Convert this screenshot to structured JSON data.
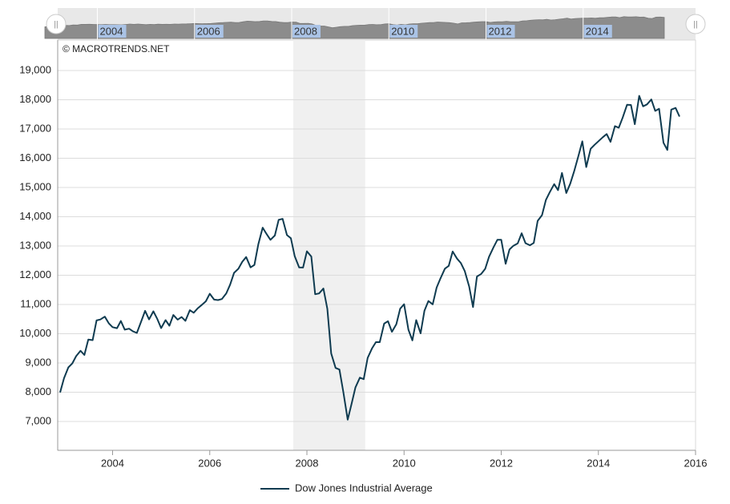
{
  "chart_data": {
    "type": "line",
    "watermark": "© MACROTRENDS.NET",
    "navigator": {
      "labels": [
        "2004",
        "2006",
        "2008",
        "2010",
        "2012",
        "2014"
      ]
    },
    "shade": [
      2007.72,
      2009.2
    ],
    "x": [
      2002.92,
      2003.0,
      2003.09,
      2003.17,
      2003.25,
      2003.34,
      2003.42,
      2003.5,
      2003.59,
      2003.67,
      2003.75,
      2003.84,
      2003.92,
      2004.0,
      2004.09,
      2004.17,
      2004.25,
      2004.34,
      2004.42,
      2004.5,
      2004.59,
      2004.67,
      2004.75,
      2004.84,
      2004.92,
      2005.0,
      2005.09,
      2005.17,
      2005.25,
      2005.34,
      2005.42,
      2005.5,
      2005.59,
      2005.67,
      2005.75,
      2005.84,
      2005.92,
      2006.0,
      2006.09,
      2006.17,
      2006.25,
      2006.34,
      2006.42,
      2006.5,
      2006.59,
      2006.67,
      2006.75,
      2006.84,
      2006.92,
      2007.0,
      2007.09,
      2007.17,
      2007.25,
      2007.34,
      2007.42,
      2007.5,
      2007.59,
      2007.67,
      2007.75,
      2007.84,
      2007.92,
      2008.0,
      2008.09,
      2008.17,
      2008.25,
      2008.34,
      2008.42,
      2008.5,
      2008.59,
      2008.67,
      2008.75,
      2008.84,
      2008.92,
      2009.0,
      2009.09,
      2009.17,
      2009.25,
      2009.34,
      2009.42,
      2009.5,
      2009.59,
      2009.67,
      2009.75,
      2009.84,
      2009.92,
      2010.0,
      2010.09,
      2010.17,
      2010.25,
      2010.34,
      2010.42,
      2010.5,
      2010.59,
      2010.67,
      2010.75,
      2010.84,
      2010.92,
      2011.0,
      2011.09,
      2011.17,
      2011.25,
      2011.34,
      2011.42,
      2011.5,
      2011.59,
      2011.67,
      2011.75,
      2011.84,
      2011.92,
      2012.0,
      2012.09,
      2012.17,
      2012.25,
      2012.34,
      2012.42,
      2012.5,
      2012.59,
      2012.67,
      2012.75,
      2012.84,
      2012.92,
      2013.0,
      2013.09,
      2013.17,
      2013.25,
      2013.34,
      2013.42,
      2013.5,
      2013.59,
      2013.67,
      2013.75,
      2013.84,
      2013.92,
      2014.0,
      2014.09,
      2014.17,
      2014.25,
      2014.34,
      2014.42,
      2014.5,
      2014.59,
      2014.67,
      2014.75,
      2014.84,
      2014.92,
      2015.0,
      2015.09,
      2015.17,
      2015.25,
      2015.34,
      2015.42,
      2015.5,
      2015.59,
      2015.67
    ],
    "series": [
      {
        "name": "Dow Jones Industrial Average",
        "color": "#0f3b50",
        "values": [
          7992,
          8480,
          8850,
          8985,
          9234,
          9416,
          9275,
          9801,
          9782,
          10454,
          10488,
          10584,
          10358,
          10226,
          10188,
          10435,
          10140,
          10174,
          10080,
          10027,
          10428,
          10783,
          10490,
          10766,
          10504,
          10193,
          10467,
          10275,
          10641,
          10482,
          10569,
          10440,
          10806,
          10718,
          10865,
          10993,
          11109,
          11367,
          11168,
          11150,
          11186,
          11381,
          11679,
          12081,
          12222,
          12463,
          12622,
          12269,
          12354,
          13063,
          13628,
          13409,
          13212,
          13358,
          13896,
          13930,
          13372,
          13265,
          12650,
          12266,
          12263,
          12820,
          12638,
          11350,
          11378,
          11544,
          10851,
          9325,
          8829,
          8776,
          8001,
          7063,
          7609,
          8168,
          8500,
          8447,
          9172,
          9496,
          9712,
          9713,
          10345,
          10428,
          10067,
          10325,
          10857,
          11009,
          10137,
          9774,
          10466,
          10015,
          10788,
          11118,
          11006,
          11578,
          11892,
          12226,
          12320,
          12811,
          12570,
          12414,
          12143,
          11614,
          10913,
          11955,
          12046,
          12218,
          12633,
          12952,
          13212,
          13214,
          12393,
          12880,
          13009,
          13091,
          13437,
          13096,
          13026,
          13104,
          13861,
          14054,
          14579,
          14840,
          15116,
          14910,
          15500,
          14810,
          15130,
          15546,
          16086,
          16577,
          15699,
          16322,
          16458,
          16581,
          16717,
          16827,
          16563,
          17098,
          17043,
          17391,
          17828,
          17823,
          17165,
          18133,
          17776,
          17841,
          18011,
          17620,
          17690,
          16528,
          16285,
          17664,
          17720,
          17425
        ]
      }
    ],
    "xlim": [
      2002.87,
      2016
    ],
    "xticks": [
      2004,
      2006,
      2008,
      2010,
      2012,
      2014,
      2016
    ],
    "ylim": [
      6014,
      20041
    ],
    "yticks": [
      {
        "value": 7000,
        "label": "7,000"
      },
      {
        "value": 8000,
        "label": "8,000"
      },
      {
        "value": 9000,
        "label": "9,000"
      },
      {
        "value": 10000,
        "label": "10,000"
      },
      {
        "value": 11000,
        "label": "11,000"
      },
      {
        "value": 12000,
        "label": "12,000"
      },
      {
        "value": 13000,
        "label": "13,000"
      },
      {
        "value": 14000,
        "label": "14,000"
      },
      {
        "value": 15000,
        "label": "15,000"
      },
      {
        "value": 16000,
        "label": "16,000"
      },
      {
        "value": 17000,
        "label": "17,000"
      },
      {
        "value": 18000,
        "label": "18,000"
      },
      {
        "value": 19000,
        "label": "19,000"
      }
    ],
    "grid": true
  }
}
